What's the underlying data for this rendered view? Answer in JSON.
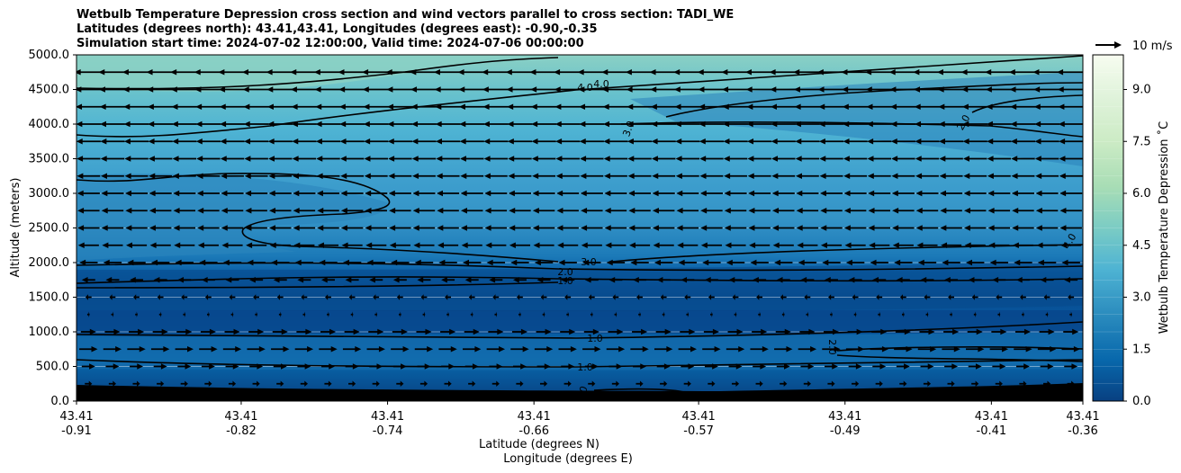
{
  "titles": {
    "line1": "Wetbulb Temperature Depression cross section and wind vectors parallel to cross section: TADI_WE",
    "line2": "Latitudes (degrees north): 43.41,43.41, Longitudes (degrees east): -0.90,-0.35",
    "line3": "Simulation start time: 2024-07-02 12:00:00, Valid time: 2024-07-06 00:00:00"
  },
  "chart_data": {
    "type": "heatmap",
    "ylabel": "Altitude (meters)",
    "xlabel_line1": "Latitude (degrees N)",
    "xlabel_line2": "Longitude (degrees E)",
    "ylim": [
      0,
      5000
    ],
    "xlim": [
      -0.91,
      -0.36
    ],
    "y_ticks": [
      "0.0",
      "500.0",
      "1000.0",
      "1500.0",
      "2000.0",
      "2500.0",
      "3000.0",
      "3500.0",
      "4000.0",
      "4500.0",
      "5000.0"
    ],
    "x_ticks": [
      {
        "lat": "43.41",
        "lon": "-0.91"
      },
      {
        "lat": "43.41",
        "lon": "-0.82"
      },
      {
        "lat": "43.41",
        "lon": "-0.74"
      },
      {
        "lat": "43.41",
        "lon": "-0.66"
      },
      {
        "lat": "43.41",
        "lon": "-0.57"
      },
      {
        "lat": "43.41",
        "lon": "-0.49"
      },
      {
        "lat": "43.41",
        "lon": "-0.41"
      },
      {
        "lat": "43.41",
        "lon": "-0.36"
      }
    ],
    "colorbar": {
      "label": "Wetbulb Temperature Depression ˚C",
      "range": [
        0,
        10
      ],
      "ticks": [
        "0.0",
        "1.5",
        "3.0",
        "4.5",
        "6.0",
        "7.5",
        "9.0"
      ],
      "colormap": "GnBu"
    },
    "quiver_key": "10 m/s",
    "wind_profile": [
      {
        "altitude": 250,
        "u": 1.2
      },
      {
        "altitude": 500,
        "u": 2.2
      },
      {
        "altitude": 750,
        "u": 3.0
      },
      {
        "altitude": 1000,
        "u": 2.5
      },
      {
        "altitude": 1250,
        "u": 0.4
      },
      {
        "altitude": 1500,
        "u": -1.0
      },
      {
        "altitude": 1750,
        "u": -2.2
      },
      {
        "altitude": 2000,
        "u": -3.0
      },
      {
        "altitude": 2250,
        "u": -3.4
      },
      {
        "altitude": 2500,
        "u": -3.6
      },
      {
        "altitude": 2750,
        "u": -3.6
      },
      {
        "altitude": 3000,
        "u": -3.7
      },
      {
        "altitude": 3250,
        "u": -3.8
      },
      {
        "altitude": 3500,
        "u": -3.9
      },
      {
        "altitude": 3750,
        "u": -4.0
      },
      {
        "altitude": 4000,
        "u": -4.1
      },
      {
        "altitude": 4250,
        "u": -4.2
      },
      {
        "altitude": 4500,
        "u": -4.4
      },
      {
        "altitude": 4750,
        "u": -4.6
      }
    ],
    "contour_labels": [
      "4.0",
      "4.0",
      "3.0",
      "2.0",
      "3.0",
      "2.0",
      "1.0",
      "1.0",
      "1.0",
      "2.0",
      "0",
      "4.0"
    ]
  }
}
